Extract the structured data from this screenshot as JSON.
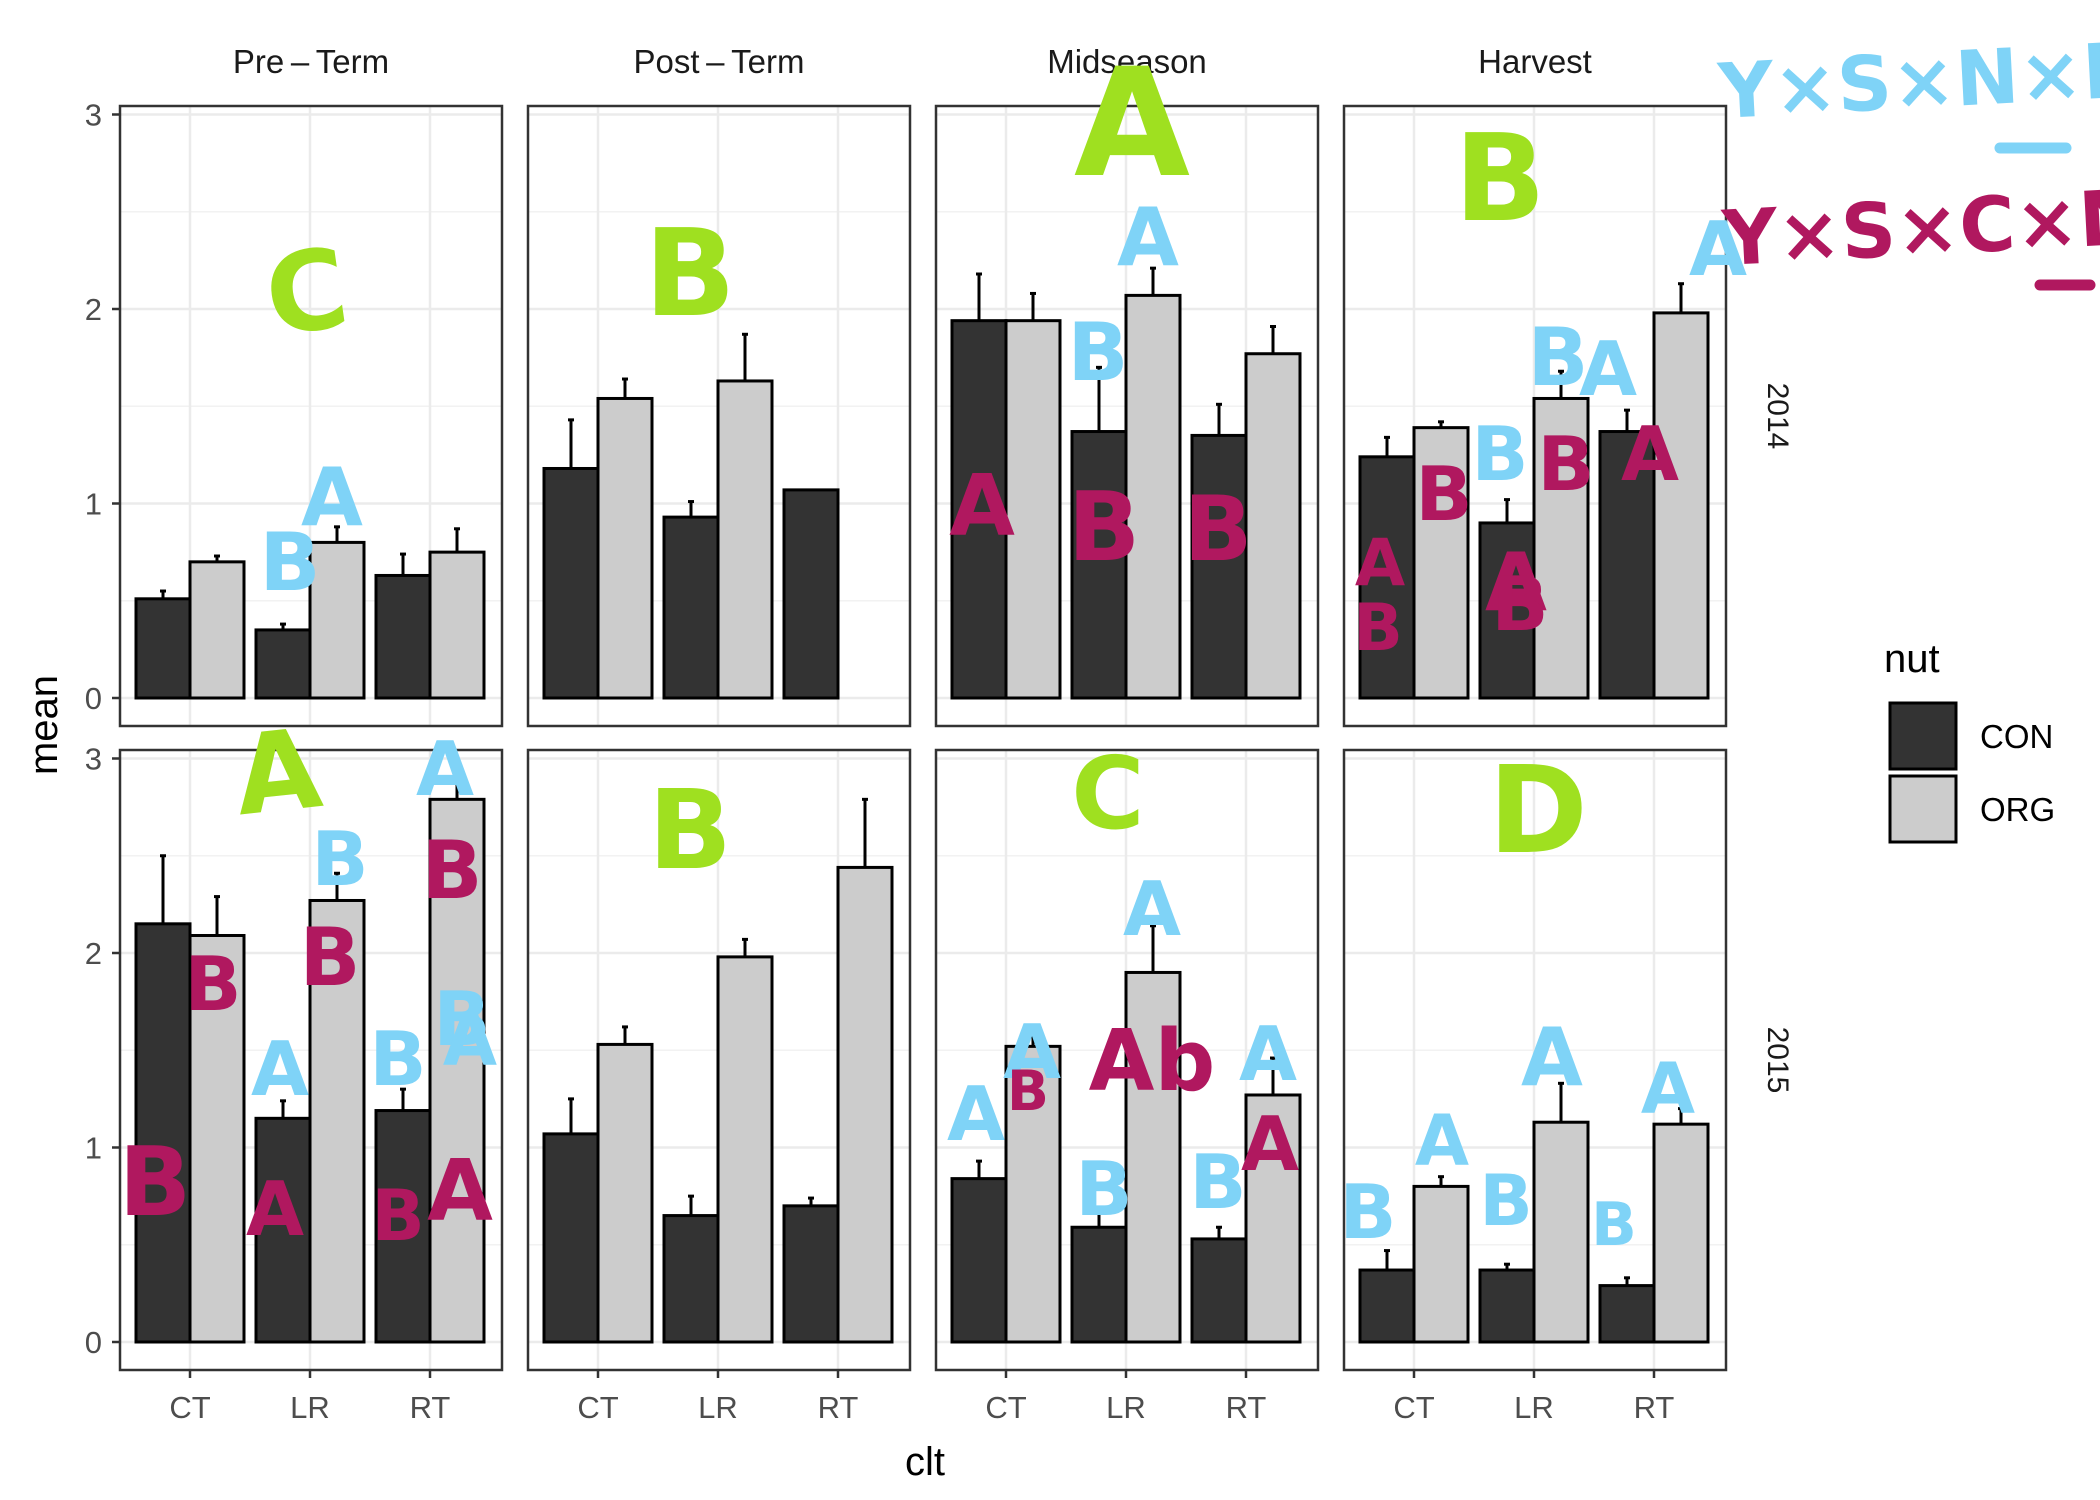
{
  "chart_data": {
    "type": "bar",
    "facet_cols": [
      "Pre – Term",
      "Post – Term",
      "Midseason",
      "Harvest"
    ],
    "facet_rows": [
      "2014",
      "2015"
    ],
    "categories": [
      "CT",
      "LR",
      "RT"
    ],
    "xlabel": "clt",
    "ylabel": "mean",
    "ylim": [
      0,
      3
    ],
    "yticks": [
      "0",
      "1",
      "2",
      "3"
    ],
    "legend": {
      "title": "nut",
      "position": "right",
      "entries": [
        {
          "label": "CON",
          "color": "#333333"
        },
        {
          "label": "ORG",
          "color": "#cccccc"
        }
      ]
    },
    "grid": true,
    "panels": [
      {
        "row": "2014",
        "col": "Pre – Term",
        "series": [
          {
            "name": "CON",
            "values": [
              0.51,
              0.35,
              0.63
            ],
            "errors": [
              0.04,
              0.03,
              0.11
            ]
          },
          {
            "name": "ORG",
            "values": [
              0.7,
              0.8,
              0.75
            ],
            "errors": [
              0.03,
              0.08,
              0.12
            ]
          }
        ]
      },
      {
        "row": "2014",
        "col": "Post – Term",
        "series": [
          {
            "name": "CON",
            "values": [
              1.18,
              0.93,
              1.07
            ],
            "errors": [
              0.25,
              0.08,
              0.0
            ]
          },
          {
            "name": "ORG",
            "values": [
              1.54,
              1.63,
              null
            ],
            "errors": [
              0.1,
              0.24,
              0.0
            ]
          }
        ]
      },
      {
        "row": "2014",
        "col": "Midseason",
        "series": [
          {
            "name": "CON",
            "values": [
              1.94,
              1.37,
              1.35
            ],
            "errors": [
              0.24,
              0.33,
              0.16
            ]
          },
          {
            "name": "ORG",
            "values": [
              1.94,
              2.07,
              1.77
            ],
            "errors": [
              0.14,
              0.14,
              0.14
            ]
          }
        ]
      },
      {
        "row": "2014",
        "col": "Harvest",
        "series": [
          {
            "name": "CON",
            "values": [
              1.24,
              0.9,
              1.37
            ],
            "errors": [
              0.1,
              0.12,
              0.11
            ]
          },
          {
            "name": "ORG",
            "values": [
              1.39,
              1.54,
              1.98
            ],
            "errors": [
              0.03,
              0.14,
              0.15
            ]
          }
        ]
      },
      {
        "row": "2015",
        "col": "Pre – Term",
        "series": [
          {
            "name": "CON",
            "values": [
              2.15,
              1.15,
              1.19
            ],
            "errors": [
              0.35,
              0.09,
              0.11
            ]
          },
          {
            "name": "ORG",
            "values": [
              2.09,
              2.27,
              2.79
            ],
            "errors": [
              0.2,
              0.14,
              0.12
            ]
          }
        ]
      },
      {
        "row": "2015",
        "col": "Post – Term",
        "series": [
          {
            "name": "CON",
            "values": [
              1.07,
              0.65,
              0.7
            ],
            "errors": [
              0.18,
              0.1,
              0.04
            ]
          },
          {
            "name": "ORG",
            "values": [
              1.53,
              1.98,
              2.44
            ],
            "errors": [
              0.09,
              0.09,
              0.35
            ]
          }
        ]
      },
      {
        "row": "2015",
        "col": "Midseason",
        "series": [
          {
            "name": "CON",
            "values": [
              0.84,
              0.59,
              0.53
            ],
            "errors": [
              0.09,
              0.08,
              0.06
            ]
          },
          {
            "name": "ORG",
            "values": [
              1.52,
              1.9,
              1.27
            ],
            "errors": [
              0.05,
              0.24,
              0.19
            ]
          }
        ]
      },
      {
        "row": "2015",
        "col": "Harvest",
        "series": [
          {
            "name": "CON",
            "values": [
              0.37,
              0.37,
              0.29
            ],
            "errors": [
              0.1,
              0.03,
              0.04
            ]
          },
          {
            "name": "ORG",
            "values": [
              0.8,
              1.13,
              1.12
            ],
            "errors": [
              0.05,
              0.2,
              0.08
            ]
          }
        ]
      }
    ],
    "annotations": {
      "header": [
        {
          "text": "Y×S×N×L",
          "color": "#7fd3f7"
        },
        {
          "text": "Y×S×C×N",
          "color": "#b0185f"
        }
      ],
      "panel_letters": [
        {
          "text": "C",
          "color": "#9fe020"
        },
        {
          "text": "B",
          "color": "#9fe020"
        },
        {
          "text": "A",
          "color": "#9fe020"
        },
        {
          "text": "B",
          "color": "#9fe020"
        },
        {
          "text": "A",
          "color": "#9fe020"
        },
        {
          "text": "B",
          "color": "#9fe020"
        },
        {
          "text": "C",
          "color": "#9fe020"
        },
        {
          "text": "D",
          "color": "#9fe020"
        }
      ],
      "blue_letters": [
        "B",
        "A",
        "B",
        "A",
        "A",
        "B",
        "A",
        "B",
        "A",
        "B",
        "A",
        "B",
        "B",
        "A",
        "A",
        "A",
        "B",
        "A",
        "B",
        "A",
        "B",
        "A",
        "B",
        "A",
        "B",
        "A",
        "B",
        "A"
      ],
      "magenta_letters": [
        "A",
        "B",
        "B",
        "A",
        "B",
        "B",
        "B",
        "A",
        "A",
        "B",
        "B",
        "B",
        "A",
        "A",
        "B",
        "B",
        "B",
        "Ab",
        "A",
        "B"
      ]
    }
  }
}
